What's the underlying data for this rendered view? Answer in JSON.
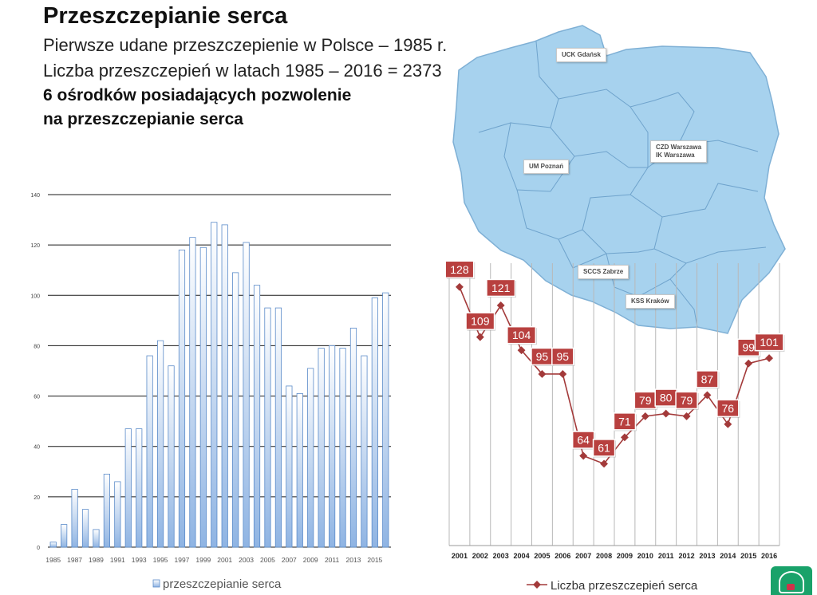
{
  "header": {
    "title": "Przeszczepianie serca",
    "line1": "Pierwsze udane przeszczepienie w Polsce – 1985 r.",
    "line2": "Liczba przeszczepień w latach 1985 – 2016 = 2373",
    "line3": "6 ośrodków posiadających pozwolenie",
    "line4": "na przeszczepianie serca"
  },
  "map": {
    "centers": [
      {
        "lines": [
          "UCK Gdańsk"
        ]
      },
      {
        "lines": [
          "UM Poznań"
        ]
      },
      {
        "lines": [
          "CZD Warszawa",
          "IK Warszawa"
        ]
      },
      {
        "lines": [
          "SCCS Zabrze"
        ]
      },
      {
        "lines": [
          "KSS Kraków"
        ]
      }
    ]
  },
  "colors": {
    "bar_fill_top": "#ffffff",
    "bar_fill_bottom": "#8fb4e3",
    "bar_stroke": "#5b8bc9",
    "line_color": "#a33a3a",
    "label_fill": "#b8403f",
    "map_fill": "#a7d2ee",
    "map_stroke": "#7fb0d5"
  },
  "chart_data": [
    {
      "type": "bar",
      "categories": [
        "1985",
        "1986",
        "1987",
        "1988",
        "1989",
        "1990",
        "1991",
        "1992",
        "1993",
        "1994",
        "1995",
        "1996",
        "1997",
        "1998",
        "1999",
        "2000",
        "2001",
        "2002",
        "2003",
        "2004",
        "2005",
        "2006",
        "2007",
        "2008",
        "2009",
        "2010",
        "2011",
        "2012",
        "2013",
        "2014",
        "2015",
        "2016"
      ],
      "x_tick_labels": [
        "1985",
        "1987",
        "1989",
        "1991",
        "1993",
        "1995",
        "1997",
        "1999",
        "2001",
        "2003",
        "2005",
        "2007",
        "2009",
        "2011",
        "2013",
        "2015"
      ],
      "series": [
        {
          "name": "przeszczepianie serca",
          "values": [
            2,
            9,
            23,
            15,
            7,
            29,
            26,
            47,
            47,
            76,
            82,
            72,
            118,
            123,
            119,
            129,
            128,
            109,
            121,
            104,
            95,
            95,
            64,
            61,
            71,
            79,
            80,
            79,
            87,
            76,
            99,
            101
          ]
        }
      ],
      "ylim": [
        0,
        140
      ],
      "y_ticks": [
        0,
        20,
        40,
        60,
        80,
        100,
        120,
        140
      ],
      "grid": true,
      "legend": "bottom"
    },
    {
      "type": "line",
      "categories": [
        "2001",
        "2002",
        "2003",
        "2004",
        "2005",
        "2006",
        "2007",
        "2008",
        "2009",
        "2010",
        "2011",
        "2012",
        "2013",
        "2014",
        "2015",
        "2016"
      ],
      "series": [
        {
          "name": "Liczba przeszczepień serca",
          "values": [
            128,
            109,
            121,
            104,
            95,
            95,
            64,
            61,
            71,
            79,
            80,
            79,
            87,
            76,
            99,
            101
          ]
        }
      ],
      "data_labels": true,
      "grid": true,
      "legend": "bottom"
    }
  ]
}
